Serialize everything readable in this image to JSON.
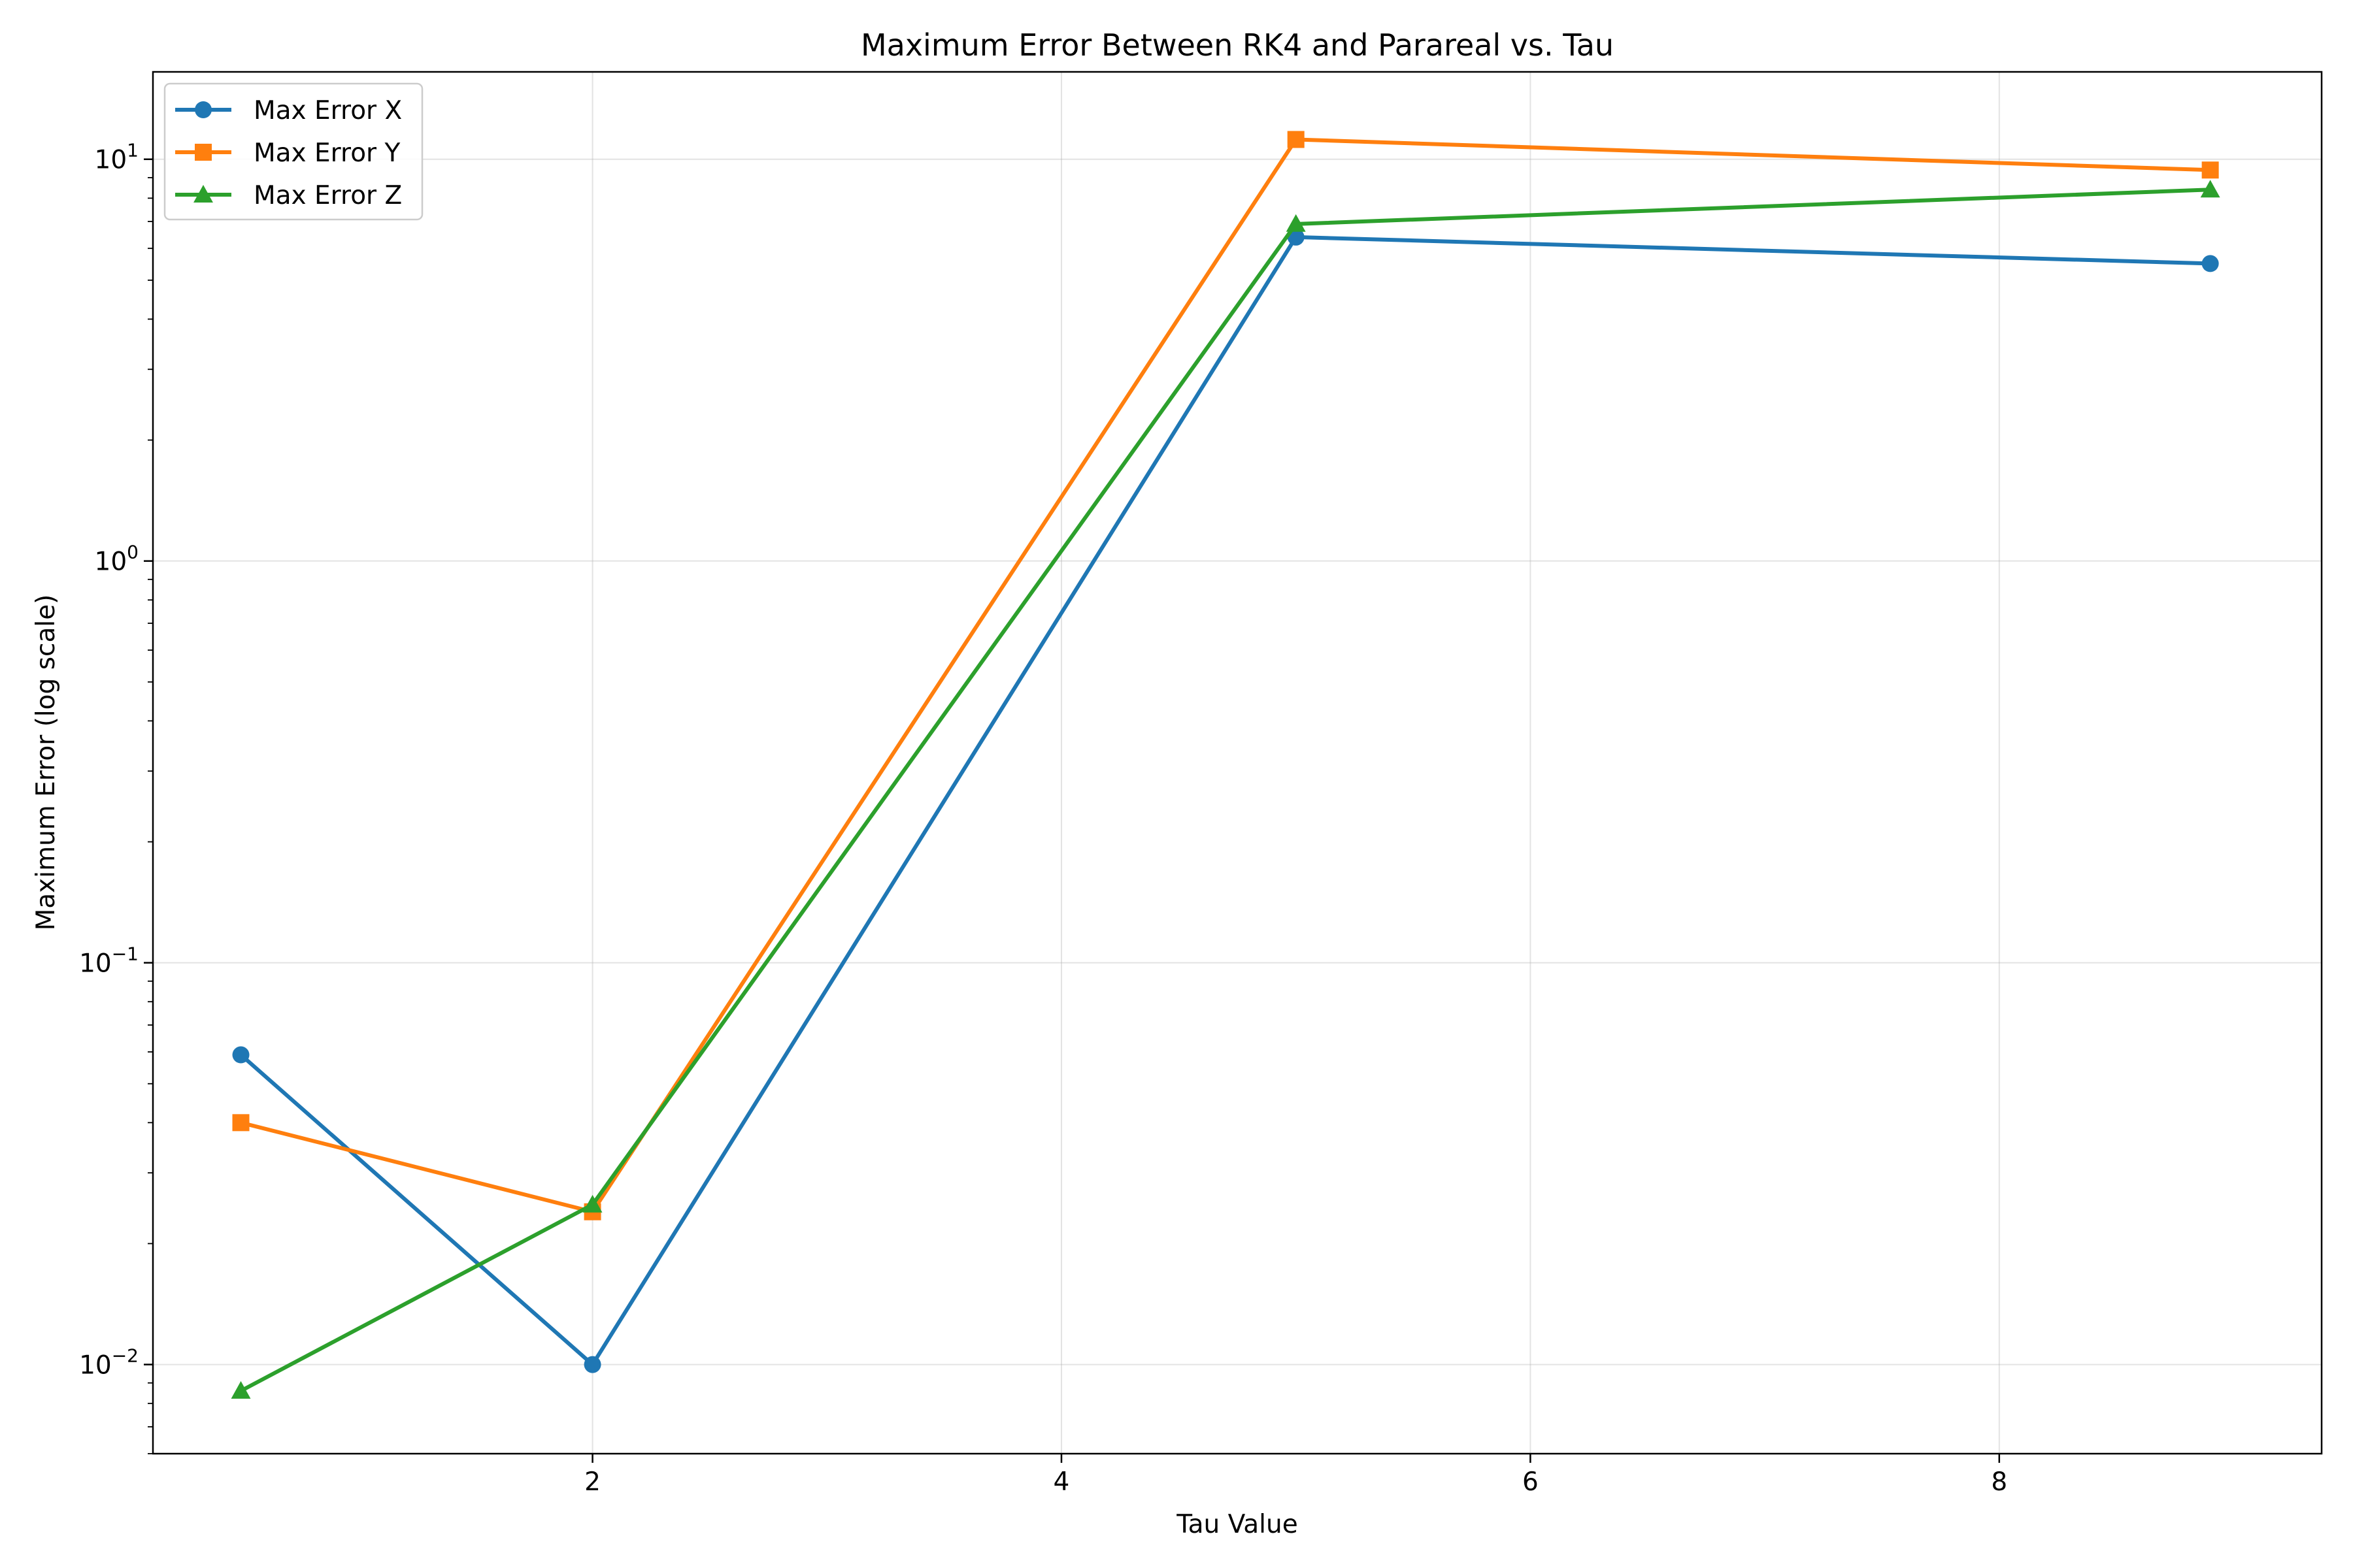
{
  "chart_data": {
    "type": "line",
    "title": "Maximum Error Between RK4 and Parareal vs. Tau",
    "xlabel": "Tau Value",
    "ylabel": "Maximum Error (log scale)",
    "xlim": [
      0.125,
      9.375
    ],
    "ylim": [
      0.006,
      16.5
    ],
    "yscale": "log",
    "grid": true,
    "legend_position": "top-left",
    "x_ticks": [
      2,
      4,
      6,
      8
    ],
    "x_tick_labels": [
      "2",
      "4",
      "6",
      "8"
    ],
    "y_ticks": [
      0.01,
      0.1,
      1,
      10
    ],
    "y_tick_labels": [
      {
        "base": "10",
        "exp": "−2"
      },
      {
        "base": "10",
        "exp": "−1"
      },
      {
        "base": "10",
        "exp": "0"
      },
      {
        "base": "10",
        "exp": "1"
      }
    ],
    "x": [
      0.5,
      2.0,
      5.0,
      8.9
    ],
    "series": [
      {
        "name": "Max Error X",
        "color": "#1f77b4",
        "marker": "circle",
        "values": [
          0.059,
          0.01,
          6.4,
          5.5
        ]
      },
      {
        "name": "Max Error Y",
        "color": "#ff7f0e",
        "marker": "square",
        "values": [
          0.04,
          0.024,
          11.2,
          9.4
        ]
      },
      {
        "name": "Max Error Z",
        "color": "#2ca02c",
        "marker": "triangle",
        "values": [
          0.0086,
          0.025,
          6.9,
          8.4
        ]
      }
    ]
  }
}
